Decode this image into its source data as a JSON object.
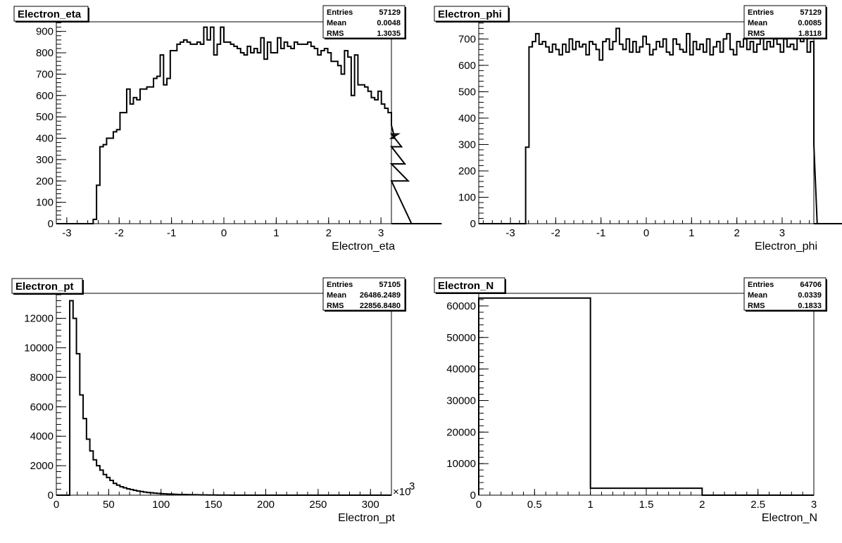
{
  "chart_data": [
    {
      "type": "histogram",
      "title": "Electron_eta",
      "xlabel": "Electron_eta",
      "ylabel": "",
      "xlim": [
        -3.2,
        3.2
      ],
      "ylim": [
        0,
        945
      ],
      "xticks": [
        "-3",
        "-2",
        "-1",
        "0",
        "1",
        "2",
        "3"
      ],
      "yticks": [
        "0",
        "100",
        "200",
        "300",
        "400",
        "500",
        "600",
        "700",
        "800",
        "900"
      ],
      "stats": {
        "Entries": "57129",
        "Mean": "0.0048",
        "RMS": "1.3035"
      },
      "bin_edges_start": -3.2,
      "bin_width": 0.064,
      "values": [
        0,
        0,
        0,
        0,
        0,
        0,
        0,
        0,
        0,
        0,
        0,
        20,
        180,
        360,
        370,
        400,
        400,
        430,
        440,
        520,
        520,
        630,
        560,
        590,
        580,
        630,
        630,
        640,
        640,
        680,
        690,
        790,
        650,
        680,
        810,
        810,
        840,
        850,
        860,
        850,
        840,
        840,
        850,
        840,
        920,
        860,
        920,
        790,
        840,
        920,
        850,
        850,
        840,
        830,
        820,
        800,
        790,
        830,
        800,
        820,
        800,
        870,
        770,
        850,
        800,
        800,
        870,
        820,
        850,
        830,
        820,
        850,
        840,
        840,
        840,
        850,
        830,
        820,
        790,
        810,
        820,
        800,
        760,
        760,
        740,
        700,
        810,
        780,
        600,
        790,
        650,
        650,
        640,
        620,
        590,
        580,
        620,
        560,
        540,
        520,
        460,
        400,
        420,
        360,
        280,
        200,
        0,
        0,
        0,
        0,
        0,
        0,
        0,
        0,
        0,
        0
      ]
    },
    {
      "type": "histogram",
      "title": "Electron_phi",
      "xlabel": "Electron_phi",
      "ylabel": "",
      "xlim": [
        -3.7,
        3.7
      ],
      "ylim": [
        0,
        765
      ],
      "xticks": [
        "-3",
        "-2",
        "-1",
        "0",
        "1",
        "2",
        "3"
      ],
      "yticks": [
        "0",
        "100",
        "200",
        "300",
        "400",
        "500",
        "600",
        "700"
      ],
      "stats": {
        "Entries": "57129",
        "Mean": "0.0085",
        "RMS": "1.8118"
      },
      "bin_edges_start": -3.7,
      "bin_width": 0.074,
      "values": [
        0,
        0,
        0,
        0,
        0,
        0,
        0,
        0,
        0,
        0,
        0,
        0,
        0,
        0,
        290,
        670,
        690,
        720,
        680,
        690,
        670,
        650,
        680,
        660,
        640,
        680,
        650,
        700,
        660,
        690,
        670,
        680,
        640,
        690,
        680,
        660,
        620,
        690,
        700,
        660,
        690,
        740,
        680,
        660,
        700,
        650,
        690,
        650,
        670,
        710,
        680,
        640,
        660,
        690,
        670,
        700,
        650,
        640,
        700,
        680,
        660,
        650,
        720,
        640,
        690,
        660,
        680,
        650,
        700,
        640,
        670,
        690,
        650,
        700,
        720,
        660,
        640,
        690,
        670,
        700,
        660,
        690,
        650,
        680,
        710,
        660,
        690,
        670,
        700,
        680,
        650,
        700,
        670,
        680,
        660,
        710,
        690,
        720,
        650,
        690,
        300,
        0,
        0,
        0,
        0,
        0,
        0,
        0,
        0,
        0
      ]
    },
    {
      "type": "histogram",
      "title": "Electron_pt",
      "xlabel": "Electron_pt",
      "ylabel": "",
      "x_multiplier_label": "×10",
      "x_multiplier_exp": "3",
      "xlim": [
        0,
        320
      ],
      "ylim": [
        0,
        13700
      ],
      "xticks": [
        "0",
        "50",
        "100",
        "150",
        "200",
        "250",
        "300"
      ],
      "yticks": [
        "0",
        "2000",
        "4000",
        "6000",
        "8000",
        "10000",
        "12000"
      ],
      "stats": {
        "Entries": "57105",
        "Mean": "26486.2489",
        "RMS": "22856.8480"
      },
      "bin_edges_start": 0,
      "bin_width": 3.2,
      "values": [
        0,
        0,
        0,
        0,
        13200,
        12000,
        9600,
        6800,
        5200,
        3800,
        3000,
        2400,
        2000,
        1700,
        1400,
        1200,
        1000,
        800,
        680,
        570,
        500,
        430,
        380,
        330,
        280,
        250,
        210,
        180,
        160,
        140,
        120,
        100,
        90,
        80,
        70,
        60,
        50,
        45,
        40,
        36,
        30,
        27,
        24,
        20,
        18,
        15,
        12,
        10,
        8,
        6,
        5,
        4,
        3,
        3,
        2,
        2,
        1,
        1,
        1,
        0,
        0,
        0,
        0,
        0,
        0,
        0,
        0,
        0,
        0,
        0,
        0,
        0,
        0,
        0,
        0,
        0,
        0,
        0,
        0,
        0,
        0,
        0,
        0,
        0,
        0,
        0,
        0,
        0,
        0,
        0,
        0,
        0,
        0,
        0,
        0,
        0,
        0,
        0,
        0,
        0
      ]
    },
    {
      "type": "histogram",
      "title": "Electron_N",
      "xlabel": "Electron_N",
      "ylabel": "",
      "xlim": [
        0,
        3
      ],
      "ylim": [
        0,
        64000
      ],
      "xticks": [
        "0",
        "0.5",
        "1",
        "1.5",
        "2",
        "2.5",
        "3"
      ],
      "yticks": [
        "0",
        "10000",
        "20000",
        "30000",
        "40000",
        "50000",
        "60000"
      ],
      "stats": {
        "Entries": "64706",
        "Mean": "0.0339",
        "RMS": "0.1833"
      },
      "bin_edges_start": 0,
      "bin_width": 1,
      "values": [
        62500,
        2200,
        0
      ]
    }
  ]
}
